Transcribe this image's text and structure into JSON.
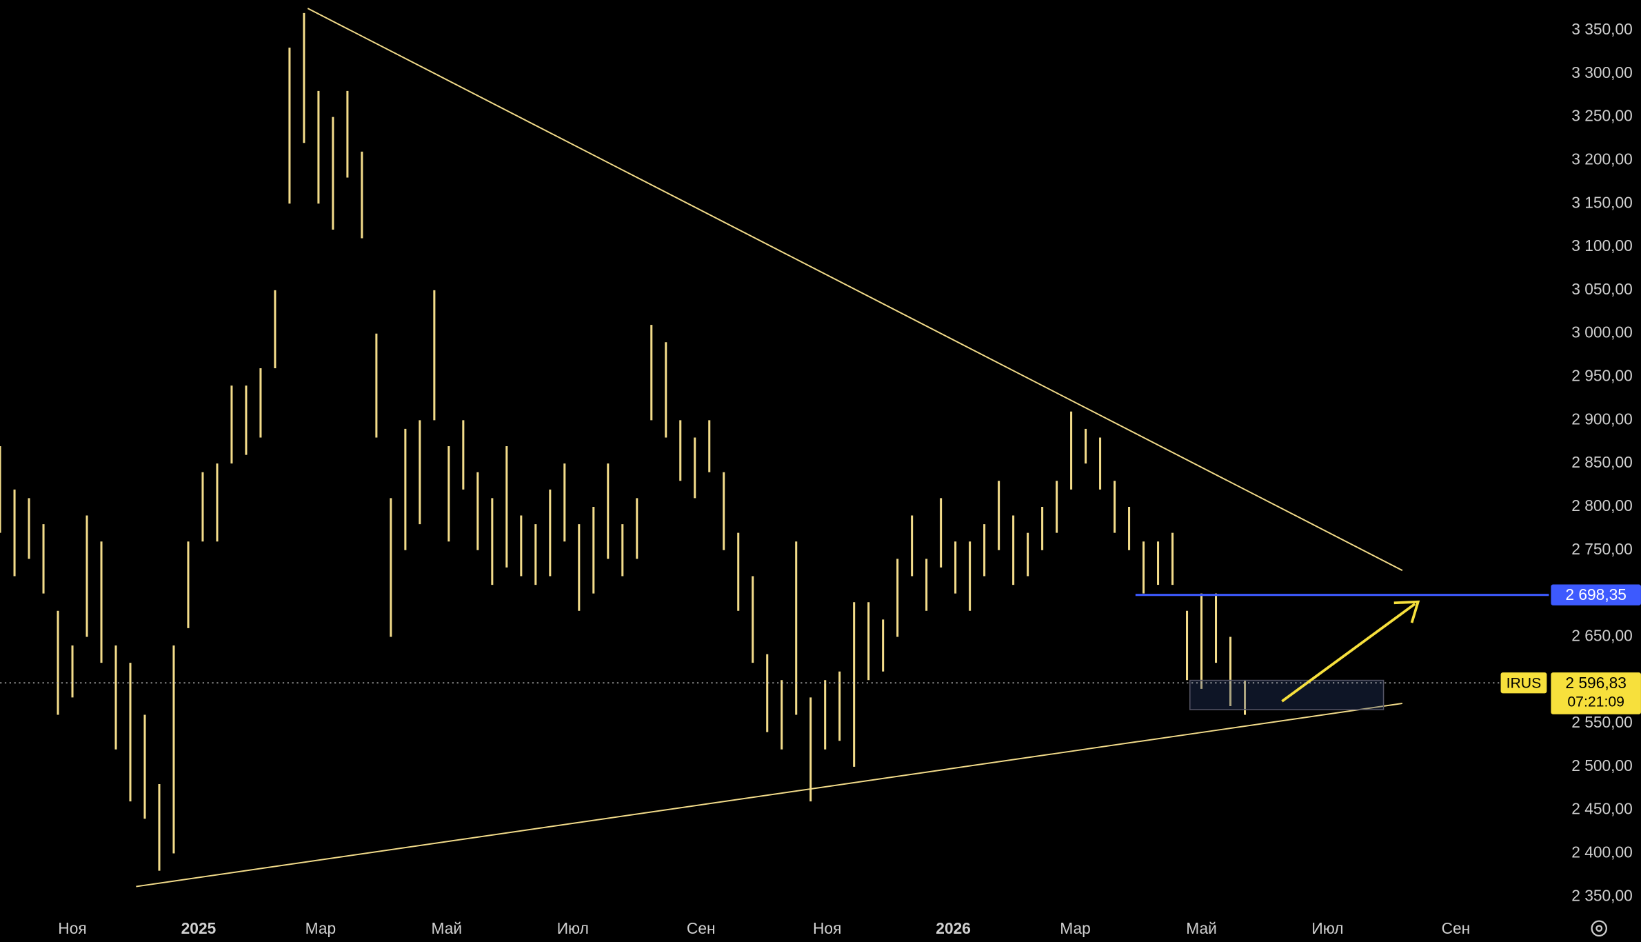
{
  "chart_data": {
    "type": "ohlc",
    "x": [
      -35,
      -28,
      -21,
      -14,
      -7,
      0,
      7,
      14,
      21,
      28,
      35,
      42,
      49,
      56,
      63,
      70,
      77,
      84,
      91,
      98,
      105,
      112,
      119,
      126,
      133,
      140,
      147,
      154,
      161,
      168,
      175,
      182,
      189,
      196,
      203,
      210,
      217,
      224,
      231,
      238,
      245,
      252,
      259,
      266,
      273,
      280,
      287,
      294,
      301,
      308,
      315,
      322,
      329,
      336,
      343,
      350,
      357,
      364,
      371,
      378,
      385,
      392,
      399,
      406,
      413,
      420,
      427,
      434,
      441,
      448,
      455,
      462,
      469,
      476,
      483,
      490,
      497,
      504,
      511,
      518,
      525,
      532,
      539,
      546,
      553,
      560,
      567
    ],
    "series": [
      {
        "name": "IRUS",
        "color": "#f3dc8a",
        "high": [
          2870,
          2820,
          2810,
          2780,
          2680,
          2640,
          2790,
          2760,
          2640,
          2620,
          2560,
          2480,
          2640,
          2760,
          2840,
          2850,
          2940,
          2940,
          2960,
          3050,
          3330,
          3370,
          3280,
          3250,
          3280,
          3210,
          3000,
          2810,
          2890,
          2900,
          3050,
          2870,
          2900,
          2840,
          2810,
          2870,
          2790,
          2780,
          2820,
          2850,
          2780,
          2800,
          2850,
          2780,
          2810,
          3010,
          2990,
          2900,
          2880,
          2900,
          2840,
          2770,
          2720,
          2630,
          2600,
          2760,
          2580,
          2600,
          2610,
          2690,
          2690,
          2670,
          2740,
          2790,
          2740,
          2810,
          2760,
          2760,
          2780,
          2830,
          2790,
          2770,
          2800,
          2830,
          2910,
          2890,
          2880,
          2830,
          2800,
          2760,
          2760,
          2770,
          2680,
          2700,
          2700,
          2650,
          2600
        ],
        "low": [
          2770,
          2720,
          2740,
          2700,
          2560,
          2580,
          2650,
          2620,
          2520,
          2460,
          2440,
          2380,
          2400,
          2660,
          2760,
          2760,
          2850,
          2860,
          2880,
          2960,
          3150,
          3220,
          3150,
          3120,
          3180,
          3110,
          2880,
          2650,
          2750,
          2780,
          2900,
          2760,
          2820,
          2750,
          2710,
          2730,
          2720,
          2710,
          2720,
          2760,
          2680,
          2700,
          2740,
          2720,
          2740,
          2900,
          2880,
          2830,
          2810,
          2840,
          2750,
          2680,
          2620,
          2540,
          2520,
          2560,
          2460,
          2520,
          2530,
          2500,
          2600,
          2610,
          2650,
          2720,
          2680,
          2730,
          2700,
          2680,
          2720,
          2750,
          2710,
          2720,
          2750,
          2770,
          2820,
          2850,
          2820,
          2770,
          2750,
          2700,
          2710,
          2710,
          2600,
          2590,
          2620,
          2570,
          2560
        ]
      }
    ],
    "xlim": [
      -35,
      714
    ],
    "ylim": [
      2334,
      3385
    ],
    "xticks": [
      {
        "value": 0,
        "label": "Ноя"
      },
      {
        "value": 61,
        "label": "2025"
      },
      {
        "value": 120,
        "label": "Мар"
      },
      {
        "value": 181,
        "label": "Май"
      },
      {
        "value": 242,
        "label": "Июл"
      },
      {
        "value": 304,
        "label": "Сен"
      },
      {
        "value": 365,
        "label": "Ноя"
      },
      {
        "value": 426,
        "label": "2026"
      },
      {
        "value": 485,
        "label": "Мар"
      },
      {
        "value": 546,
        "label": "Май"
      },
      {
        "value": 607,
        "label": "Июл"
      },
      {
        "value": 669,
        "label": "Сен"
      }
    ],
    "yticks": [
      {
        "value": 2350,
        "label": "2 350,00"
      },
      {
        "value": 2400,
        "label": "2 400,00"
      },
      {
        "value": 2450,
        "label": "2 450,00"
      },
      {
        "value": 2500,
        "label": "2 500,00"
      },
      {
        "value": 2550,
        "label": "2 550,00"
      },
      {
        "value": 2650,
        "label": "2 650,00"
      },
      {
        "value": 2750,
        "label": "2 750,00"
      },
      {
        "value": 2800,
        "label": "2 800,00"
      },
      {
        "value": 2850,
        "label": "2 850,00"
      },
      {
        "value": 2900,
        "label": "2 900,00"
      },
      {
        "value": 2950,
        "label": "2 950,00"
      },
      {
        "value": 3000,
        "label": "3 000,00"
      },
      {
        "value": 3050,
        "label": "3 050,00"
      },
      {
        "value": 3100,
        "label": "3 100,00"
      },
      {
        "value": 3150,
        "label": "3 150,00"
      },
      {
        "value": 3200,
        "label": "3 200,00"
      },
      {
        "value": 3250,
        "label": "3 250,00"
      },
      {
        "value": 3300,
        "label": "3 300,00"
      },
      {
        "value": 3350,
        "label": "3 350,00"
      }
    ],
    "level_line": {
      "value": 2698.35,
      "label": "2 698,35",
      "color": "#3d5afe"
    },
    "last_price": {
      "value": 2596.83,
      "label": "2 596,83",
      "countdown": "07:21:09",
      "color": "#f7e03c"
    }
  }
}
